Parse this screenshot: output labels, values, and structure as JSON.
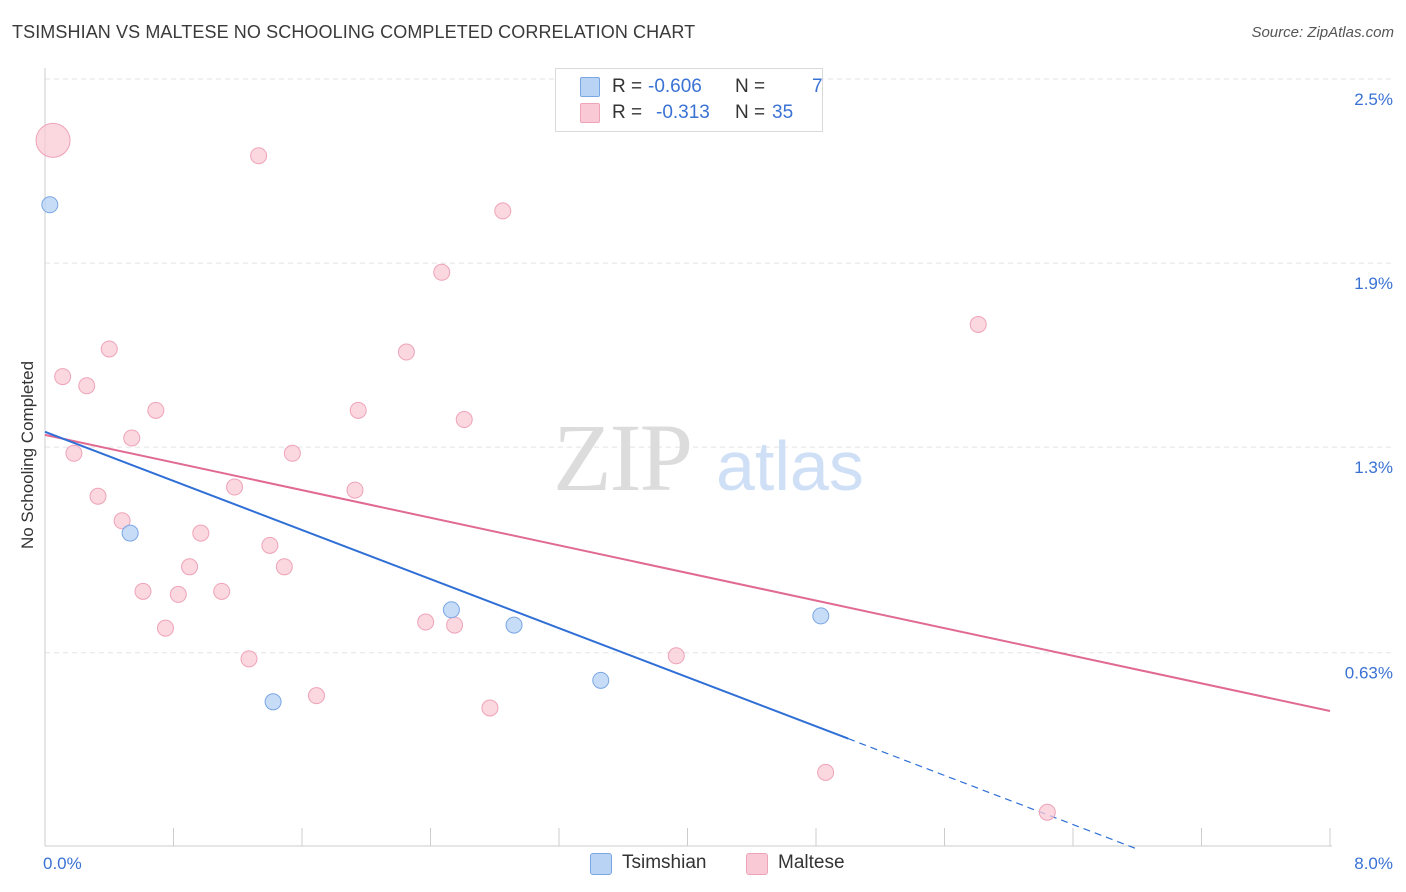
{
  "title": "TSIMSHIAN VS MALTESE NO SCHOOLING COMPLETED CORRELATION CHART",
  "source": "Source: ZipAtlas.com",
  "watermark": {
    "zip": "ZIP",
    "atlas": "atlas"
  },
  "legend_box": {
    "rows": [
      {
        "r_label": "R =",
        "r_value": "-0.606",
        "n_label": "N =",
        "n_value": "7"
      },
      {
        "r_label": "R =",
        "r_value": "-0.313",
        "n_label": "N =",
        "n_value": "35"
      }
    ]
  },
  "bottom_legend": {
    "series1": "Tsimshian",
    "series2": "Maltese"
  },
  "colors": {
    "tsimshian_fill": "#b9d3f5",
    "tsimshian_stroke": "#7aa6e4",
    "tsimshian_line": "#2f6fd6",
    "maltese_fill": "#f9c9d6",
    "maltese_stroke": "#eea3b8",
    "maltese_line": "#e06a92",
    "axis_label": "#3a72d4",
    "grid": "#e3e3e3"
  },
  "chart_data": {
    "type": "scatter",
    "title": "TSIMSHIAN VS MALTESE NO SCHOOLING COMPLETED CORRELATION CHART",
    "xlabel": "",
    "ylabel": "No Schooling Completed",
    "xlim": [
      0.0,
      8.0
    ],
    "ylim": [
      0.0,
      2.5
    ],
    "x_tick_labels": [
      "0.0%",
      "8.0%"
    ],
    "y_ticks": [
      0.63,
      1.3,
      1.9,
      2.5
    ],
    "y_tick_labels": [
      "0.63%",
      "1.3%",
      "1.9%",
      "2.5%"
    ],
    "grid": true,
    "legend_position": "top-center",
    "series": [
      {
        "name": "Tsimshian",
        "r": -0.606,
        "n": 7,
        "points": [
          {
            "x": 0.03,
            "y": 2.09
          },
          {
            "x": 0.53,
            "y": 1.02
          },
          {
            "x": 1.42,
            "y": 0.47
          },
          {
            "x": 2.53,
            "y": 0.77
          },
          {
            "x": 2.92,
            "y": 0.72
          },
          {
            "x": 3.46,
            "y": 0.54
          },
          {
            "x": 4.83,
            "y": 0.75
          }
        ],
        "trend": {
          "x0": 0.0,
          "y0": 1.35,
          "x1": 5.0,
          "y1": 0.35,
          "dashed_to_x": 6.8
        }
      },
      {
        "name": "Maltese",
        "r": -0.313,
        "n": 35,
        "points": [
          {
            "x": 0.05,
            "y": 2.3,
            "size": "large"
          },
          {
            "x": 1.33,
            "y": 2.25
          },
          {
            "x": 2.85,
            "y": 2.07
          },
          {
            "x": 2.47,
            "y": 1.87
          },
          {
            "x": 5.81,
            "y": 1.7
          },
          {
            "x": 0.4,
            "y": 1.62
          },
          {
            "x": 2.25,
            "y": 1.61
          },
          {
            "x": 0.11,
            "y": 1.53
          },
          {
            "x": 0.26,
            "y": 1.5
          },
          {
            "x": 0.69,
            "y": 1.42
          },
          {
            "x": 1.95,
            "y": 1.42
          },
          {
            "x": 2.61,
            "y": 1.39
          },
          {
            "x": 0.54,
            "y": 1.33
          },
          {
            "x": 0.18,
            "y": 1.28
          },
          {
            "x": 1.54,
            "y": 1.28
          },
          {
            "x": 1.18,
            "y": 1.17
          },
          {
            "x": 1.93,
            "y": 1.16
          },
          {
            "x": 0.33,
            "y": 1.14
          },
          {
            "x": 0.48,
            "y": 1.06
          },
          {
            "x": 0.97,
            "y": 1.02
          },
          {
            "x": 1.4,
            "y": 0.98
          },
          {
            "x": 0.9,
            "y": 0.91
          },
          {
            "x": 1.49,
            "y": 0.91
          },
          {
            "x": 0.61,
            "y": 0.83
          },
          {
            "x": 0.83,
            "y": 0.82
          },
          {
            "x": 1.1,
            "y": 0.83
          },
          {
            "x": 0.75,
            "y": 0.71
          },
          {
            "x": 2.37,
            "y": 0.73
          },
          {
            "x": 2.55,
            "y": 0.72
          },
          {
            "x": 1.27,
            "y": 0.61
          },
          {
            "x": 3.93,
            "y": 0.62
          },
          {
            "x": 1.69,
            "y": 0.49
          },
          {
            "x": 2.77,
            "y": 0.45
          },
          {
            "x": 4.86,
            "y": 0.24
          },
          {
            "x": 6.24,
            "y": 0.11
          }
        ],
        "trend": {
          "x0": 0.0,
          "y0": 1.34,
          "x1": 8.0,
          "y1": 0.44
        }
      }
    ]
  }
}
